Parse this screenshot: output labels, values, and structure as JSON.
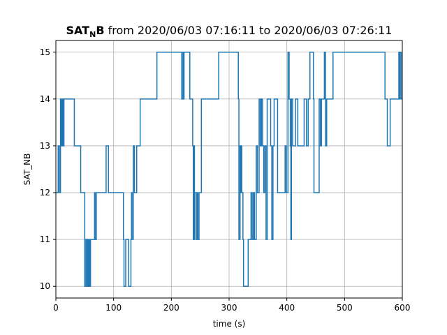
{
  "chart_data": {
    "type": "line",
    "title": {
      "bold_main": "SAT",
      "bold_sub": "N",
      "bold_tail": "B",
      "rest": " from 2020/06/03 07:16:11 to 2020/06/03 07:26:11"
    },
    "xlabel": "time (s)",
    "ylabel": "SAT_NB",
    "xlim": [
      0,
      600
    ],
    "ylim": [
      9.75,
      15.25
    ],
    "x_ticks": [
      0,
      100,
      200,
      300,
      400,
      500,
      600
    ],
    "y_ticks": [
      10,
      11,
      12,
      13,
      14,
      15
    ],
    "x_tick_labels": [
      "0",
      "100",
      "200",
      "300",
      "400",
      "500",
      "600"
    ],
    "y_tick_labels": [
      "10",
      "11",
      "12",
      "13",
      "14",
      "15"
    ],
    "grid": true,
    "line_style": "step",
    "line_color": "#1f77b4",
    "series": [
      {
        "x": [
          0,
          4,
          6,
          8,
          9,
          10,
          11,
          12,
          13,
          14,
          15,
          32,
          40,
          43,
          45,
          50,
          51,
          53,
          54,
          55,
          56,
          57,
          58,
          59,
          60,
          61,
          67,
          68,
          70,
          73,
          87,
          91,
          117,
          118,
          121,
          126,
          130,
          131,
          133,
          134,
          136,
          140,
          146,
          175,
          218,
          220,
          221,
          222,
          232,
          237,
          238,
          239,
          240,
          241,
          244,
          245,
          246,
          248,
          252,
          282,
          316,
          317,
          319,
          320,
          321,
          322,
          324,
          325,
          329,
          333,
          338,
          340,
          342,
          344,
          347,
          349,
          352,
          354,
          356,
          358,
          360,
          362,
          364,
          366,
          372,
          374,
          376,
          378,
          380,
          384,
          394,
          397,
          399,
          402,
          404,
          406,
          407,
          408,
          410,
          415,
          419,
          425,
          430,
          434,
          437,
          440,
          444,
          446,
          447,
          456,
          458,
          460,
          465,
          467,
          469,
          470,
          473,
          474,
          476,
          480,
          490,
          508,
          570,
          574,
          579,
          584,
          594,
          595,
          596,
          598,
          600
        ],
        "y": [
          12,
          13,
          12,
          14,
          13,
          14,
          13,
          14,
          13,
          14,
          14,
          13,
          13,
          12,
          12,
          10,
          11,
          10,
          11,
          10,
          11,
          10,
          11,
          10,
          11,
          11,
          12,
          11,
          12,
          12,
          13,
          12,
          11,
          10,
          11,
          10,
          11,
          12,
          11,
          13,
          12,
          13,
          14,
          15,
          14,
          15,
          14,
          15,
          14,
          13,
          11,
          13,
          11,
          12,
          11,
          12,
          11,
          12,
          14,
          15,
          14,
          11,
          13,
          12,
          13,
          12,
          11,
          10,
          10,
          11,
          12,
          11,
          12,
          11,
          13,
          12,
          14,
          13,
          14,
          13,
          12,
          13,
          11,
          14,
          13,
          11,
          13,
          14,
          14,
          12,
          12,
          13,
          12,
          15,
          14,
          13,
          11,
          14,
          13,
          14,
          13,
          13,
          14,
          13,
          14,
          15,
          15,
          14,
          12,
          14,
          13,
          14,
          15,
          13,
          14,
          14,
          14,
          14,
          14,
          15,
          15,
          15,
          14,
          13,
          14,
          14,
          15,
          14,
          15,
          14,
          14
        ]
      }
    ]
  }
}
